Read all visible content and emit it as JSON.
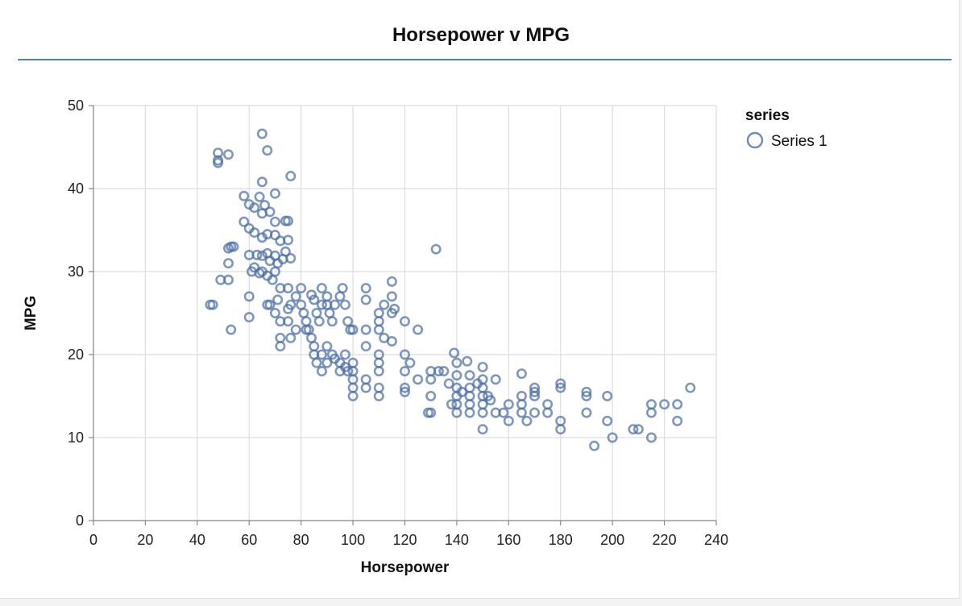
{
  "chart_data": {
    "type": "scatter",
    "title": "Horsepower v MPG",
    "xlabel": "Horsepower",
    "ylabel": "MPG",
    "xlim": [
      0,
      240
    ],
    "ylim": [
      0,
      50
    ],
    "x_ticks": [
      "0",
      "20",
      "40",
      "60",
      "80",
      "100",
      "120",
      "140",
      "160",
      "180",
      "200",
      "220",
      "240"
    ],
    "y_ticks": [
      "0",
      "10",
      "20",
      "30",
      "40",
      "50"
    ],
    "grid": true,
    "legend": {
      "title": "series",
      "position": "top-right",
      "entries": [
        "Series 1"
      ]
    },
    "marker_color": "#4c6fa3",
    "series": [
      {
        "name": "Series 1",
        "points": [
          [
            48,
            44.3
          ],
          [
            48,
            43.4
          ],
          [
            48,
            43.1
          ],
          [
            52,
            44.1
          ],
          [
            65,
            46.6
          ],
          [
            67,
            44.6
          ],
          [
            65,
            40.8
          ],
          [
            76,
            41.5
          ],
          [
            70,
            39.4
          ],
          [
            58,
            39.1
          ],
          [
            64,
            39.0
          ],
          [
            60,
            38.1
          ],
          [
            62,
            37.7
          ],
          [
            66,
            38.0
          ],
          [
            68,
            37.2
          ],
          [
            65,
            37.0
          ],
          [
            70,
            36.0
          ],
          [
            74,
            36.1
          ],
          [
            75,
            36.1
          ],
          [
            58,
            36.0
          ],
          [
            60,
            35.2
          ],
          [
            62,
            34.7
          ],
          [
            65,
            34.1
          ],
          [
            67,
            34.5
          ],
          [
            70,
            34.4
          ],
          [
            72,
            33.7
          ],
          [
            75,
            33.8
          ],
          [
            63,
            32.0
          ],
          [
            65,
            31.9
          ],
          [
            67,
            32.2
          ],
          [
            68,
            31.3
          ],
          [
            70,
            31.9
          ],
          [
            71,
            31.0
          ],
          [
            73,
            31.5
          ],
          [
            74,
            32.4
          ],
          [
            76,
            31.6
          ],
          [
            52,
            32.8
          ],
          [
            53,
            33.0
          ],
          [
            54,
            33.0
          ],
          [
            52,
            31.0
          ],
          [
            52,
            29.0
          ],
          [
            49,
            29.0
          ],
          [
            60,
            32.0
          ],
          [
            61,
            30.0
          ],
          [
            62,
            30.5
          ],
          [
            64,
            29.8
          ],
          [
            65,
            30.0
          ],
          [
            67,
            29.5
          ],
          [
            69,
            29.0
          ],
          [
            70,
            30.0
          ],
          [
            72,
            28.0
          ],
          [
            75,
            28.0
          ],
          [
            45,
            26.0
          ],
          [
            46,
            26.0
          ],
          [
            53,
            23.0
          ],
          [
            60,
            24.5
          ],
          [
            60,
            27.0
          ],
          [
            67,
            26.0
          ],
          [
            68,
            26.0
          ],
          [
            70,
            25.0
          ],
          [
            71,
            26.6
          ],
          [
            72,
            24.0
          ],
          [
            75,
            25.5
          ],
          [
            75,
            24.0
          ],
          [
            76,
            26.0
          ],
          [
            78,
            27.0
          ],
          [
            80,
            28.0
          ],
          [
            80,
            26.0
          ],
          [
            81,
            25.0
          ],
          [
            82,
            24.0
          ],
          [
            83,
            23.0
          ],
          [
            84,
            27.2
          ],
          [
            85,
            26.6
          ],
          [
            86,
            25.0
          ],
          [
            87,
            24.0
          ],
          [
            88,
            26.0
          ],
          [
            88,
            28.0
          ],
          [
            90,
            27.0
          ],
          [
            90,
            26.0
          ],
          [
            91,
            25.0
          ],
          [
            92,
            24.0
          ],
          [
            93,
            26.0
          ],
          [
            95,
            27.0
          ],
          [
            96,
            28.0
          ],
          [
            97,
            26.0
          ],
          [
            98,
            24.0
          ],
          [
            99,
            23.0
          ],
          [
            100,
            23.0
          ],
          [
            72,
            22.0
          ],
          [
            72,
            21.0
          ],
          [
            76,
            22.0
          ],
          [
            78,
            23.0
          ],
          [
            82,
            23.0
          ],
          [
            84,
            22.0
          ],
          [
            85,
            21.0
          ],
          [
            85,
            20.0
          ],
          [
            86,
            19.0
          ],
          [
            88,
            20.0
          ],
          [
            88,
            18.0
          ],
          [
            90,
            19.0
          ],
          [
            90,
            21.0
          ],
          [
            92,
            20.0
          ],
          [
            93,
            19.5
          ],
          [
            95,
            19.0
          ],
          [
            95,
            18.0
          ],
          [
            97,
            20.0
          ],
          [
            97,
            18.5
          ],
          [
            98,
            18.0
          ],
          [
            100,
            19.0
          ],
          [
            100,
            18.0
          ],
          [
            100,
            17.0
          ],
          [
            100,
            16.0
          ],
          [
            100,
            15.0
          ],
          [
            105,
            17.0
          ],
          [
            105,
            16.0
          ],
          [
            110,
            16.0
          ],
          [
            110,
            15.0
          ],
          [
            110,
            18.0
          ],
          [
            110,
            19.0
          ],
          [
            110,
            20.0
          ],
          [
            105,
            21.0
          ],
          [
            105,
            23.0
          ],
          [
            105,
            26.6
          ],
          [
            105,
            28.0
          ],
          [
            110,
            25.0
          ],
          [
            110,
            24.0
          ],
          [
            110,
            23.0
          ],
          [
            112,
            22.0
          ],
          [
            115,
            21.6
          ],
          [
            112,
            26.0
          ],
          [
            115,
            27.0
          ],
          [
            115,
            25.0
          ],
          [
            115,
            28.8
          ],
          [
            116,
            25.5
          ],
          [
            120,
            24.0
          ],
          [
            125,
            23.0
          ],
          [
            120,
            20.0
          ],
          [
            122,
            19.0
          ],
          [
            120,
            18.0
          ],
          [
            120,
            16.0
          ],
          [
            120,
            15.5
          ],
          [
            125,
            17.0
          ],
          [
            130,
            18.0
          ],
          [
            130,
            17.0
          ],
          [
            130,
            15.0
          ],
          [
            129,
            13.0
          ],
          [
            130,
            13.0
          ],
          [
            132,
            32.7
          ],
          [
            133,
            18.0
          ],
          [
            135,
            18.0
          ],
          [
            137,
            16.5
          ],
          [
            138,
            14.0
          ],
          [
            139,
            20.2
          ],
          [
            140,
            19.0
          ],
          [
            140,
            17.5
          ],
          [
            140,
            16.0
          ],
          [
            140,
            15.0
          ],
          [
            140,
            14.0
          ],
          [
            140,
            13.0
          ],
          [
            142,
            15.5
          ],
          [
            144,
            19.2
          ],
          [
            145,
            17.5
          ],
          [
            145,
            16.0
          ],
          [
            145,
            15.0
          ],
          [
            145,
            14.0
          ],
          [
            145,
            13.0
          ],
          [
            148,
            16.5
          ],
          [
            150,
            18.5
          ],
          [
            150,
            17.0
          ],
          [
            150,
            16.0
          ],
          [
            150,
            15.0
          ],
          [
            150,
            14.0
          ],
          [
            150,
            13.0
          ],
          [
            150,
            11.0
          ],
          [
            152,
            15.0
          ],
          [
            153,
            14.5
          ],
          [
            155,
            17.0
          ],
          [
            155,
            13.0
          ],
          [
            158,
            13.0
          ],
          [
            160,
            14.0
          ],
          [
            160,
            12.0
          ],
          [
            165,
            17.7
          ],
          [
            165,
            15.0
          ],
          [
            165,
            14.0
          ],
          [
            165,
            13.0
          ],
          [
            167,
            12.0
          ],
          [
            170,
            16.0
          ],
          [
            170,
            15.5
          ],
          [
            170,
            15.0
          ],
          [
            170,
            13.0
          ],
          [
            175,
            14.0
          ],
          [
            175,
            13.0
          ],
          [
            180,
            16.5
          ],
          [
            180,
            16.0
          ],
          [
            180,
            12.0
          ],
          [
            180,
            11.0
          ],
          [
            190,
            15.5
          ],
          [
            190,
            15.0
          ],
          [
            190,
            13.0
          ],
          [
            193,
            9.0
          ],
          [
            198,
            15.0
          ],
          [
            198,
            12.0
          ],
          [
            200,
            10.0
          ],
          [
            208,
            11.0
          ],
          [
            210,
            11.0
          ],
          [
            215,
            14.0
          ],
          [
            215,
            13.0
          ],
          [
            215,
            10.0
          ],
          [
            220,
            14.0
          ],
          [
            225,
            14.0
          ],
          [
            225,
            12.0
          ],
          [
            230,
            16.0
          ]
        ]
      }
    ]
  }
}
